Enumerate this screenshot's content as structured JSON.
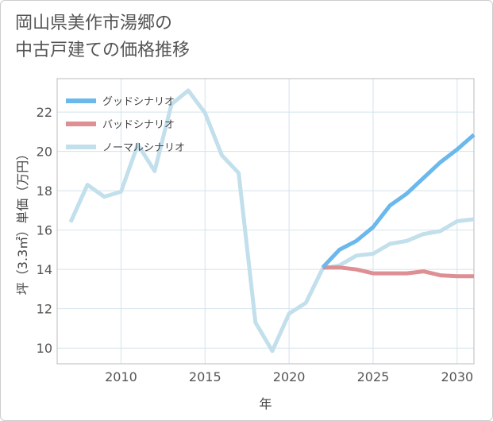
{
  "title": "岡山県美作市湯郷の\n中古戸建ての価格推移",
  "chart_data": {
    "type": "line",
    "xlabel": "年",
    "ylabel": "坪（3.3㎡）単価（万円）",
    "xlim": [
      2006.2,
      2031
    ],
    "ylim": [
      9.2,
      23.7
    ],
    "xticks": [
      2010,
      2015,
      2020,
      2025,
      2030
    ],
    "yticks": [
      10,
      12,
      14,
      16,
      18,
      20,
      22
    ],
    "grid": true,
    "legend_position": "top-left",
    "series": [
      {
        "name": "グッドシナリオ",
        "color": "#6ab8ec",
        "x": [
          2022,
          2023,
          2024,
          2025,
          2026,
          2027,
          2028,
          2029,
          2030,
          2031
        ],
        "y": [
          14.1,
          15.0,
          15.45,
          16.15,
          17.25,
          17.85,
          18.65,
          19.45,
          20.1,
          20.85
        ]
      },
      {
        "name": "バッドシナリオ",
        "color": "#dd8f94",
        "x": [
          2022,
          2023,
          2024,
          2025,
          2026,
          2027,
          2028,
          2029,
          2030,
          2031
        ],
        "y": [
          14.1,
          14.1,
          14.0,
          13.8,
          13.8,
          13.8,
          13.9,
          13.7,
          13.65,
          13.65
        ]
      },
      {
        "name": "ノーマルシナリオ",
        "color": "#c2dfec",
        "x": [
          2007,
          2008,
          2009,
          2010,
          2011,
          2012,
          2013,
          2014,
          2015,
          2016,
          2017,
          2018,
          2019,
          2020,
          2021,
          2022,
          2023,
          2024,
          2025,
          2026,
          2027,
          2028,
          2029,
          2030,
          2031
        ],
        "y": [
          16.4,
          18.3,
          17.7,
          17.95,
          20.35,
          19.0,
          22.4,
          23.1,
          21.95,
          19.8,
          18.9,
          11.3,
          9.85,
          11.75,
          12.3,
          14.05,
          14.2,
          14.7,
          14.8,
          15.3,
          15.45,
          15.8,
          15.95,
          16.45,
          16.55
        ]
      }
    ]
  }
}
